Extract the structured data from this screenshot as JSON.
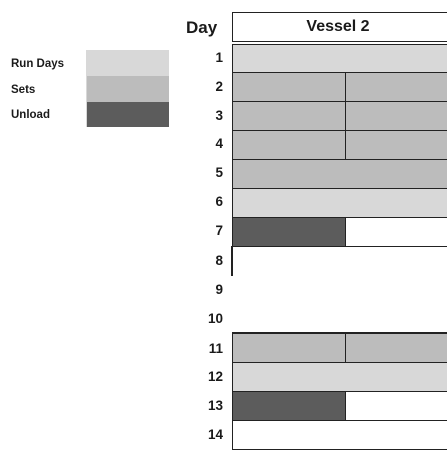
{
  "legend": [
    {
      "label": "Run Days",
      "key": "run"
    },
    {
      "label": "Sets",
      "key": "sets"
    },
    {
      "label": "Unload",
      "key": "unload"
    }
  ],
  "colors": {
    "run": "#d8d8d8",
    "sets": "#bcbcbc",
    "unload": "#5c5c5c"
  },
  "header": {
    "day_label": "Day",
    "vessel_label": "Vessel 2"
  },
  "days": [
    "1",
    "2",
    "3",
    "4",
    "5",
    "6",
    "7",
    "8",
    "9",
    "10",
    "11",
    "12",
    "13",
    "14"
  ]
}
